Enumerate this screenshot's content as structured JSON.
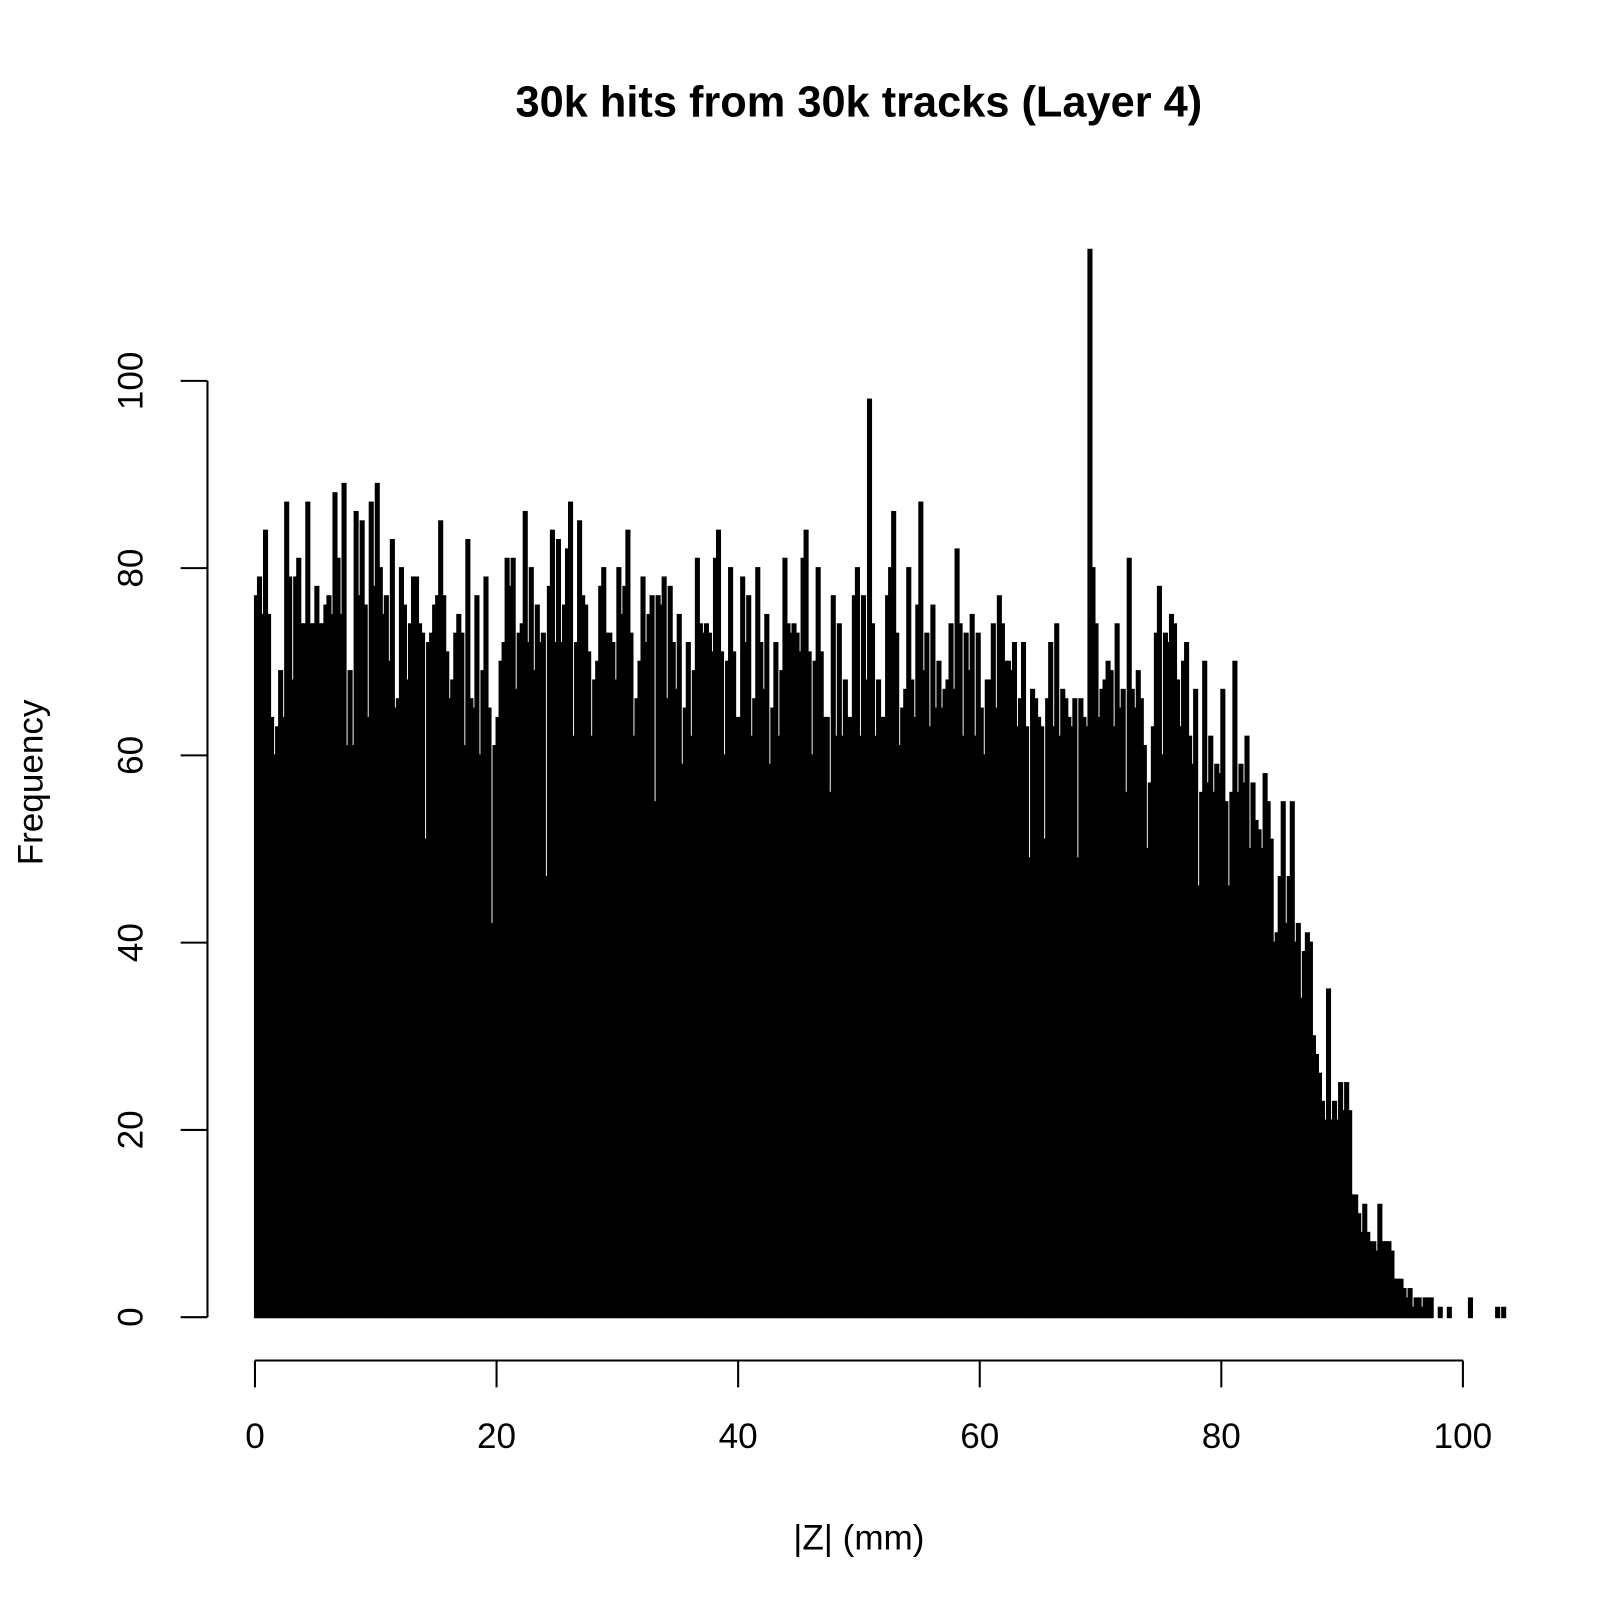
{
  "chart_data": {
    "type": "histogram",
    "title": "30k hits from 30k tracks (Layer 4)",
    "x_label": "|Z| (mm)",
    "y_label": "Frequency",
    "color": "#000000",
    "bins": [
      0,
      0.25,
      0.5,
      0.75,
      1,
      1.25,
      1.5,
      1.75,
      2,
      2.25,
      2.5,
      2.75,
      3,
      3.25,
      3.5,
      3.75,
      4,
      4.25,
      4.5,
      4.75,
      5,
      5.25,
      5.5,
      5.75,
      6,
      6.25,
      6.5,
      6.75,
      7,
      7.25,
      7.5,
      7.75,
      8,
      8.25,
      8.5,
      8.75,
      9,
      9.25,
      9.5,
      9.75,
      10,
      10.25,
      10.5,
      10.75,
      11,
      11.25,
      11.5,
      11.75,
      12,
      12.25,
      12.5,
      12.75,
      13,
      13.25,
      13.5,
      13.75,
      14,
      14.25,
      14.5,
      14.75,
      15,
      15.25,
      15.5,
      15.75,
      16,
      16.25,
      16.5,
      16.75,
      17,
      17.25,
      17.5,
      17.75,
      18,
      18.25,
      18.5,
      18.75,
      19,
      19.25,
      19.5,
      19.75,
      20,
      20.25,
      20.5,
      20.75,
      21,
      21.25,
      21.5,
      21.75,
      22,
      22.25,
      22.5,
      22.75,
      23,
      23.25,
      23.5,
      23.75,
      24,
      24.25,
      24.5,
      24.75,
      25,
      25.25,
      25.5,
      25.75,
      26,
      26.25,
      26.5,
      26.75,
      27,
      27.25,
      27.5,
      27.75,
      28,
      28.25,
      28.5,
      28.75,
      29,
      29.25,
      29.5,
      29.75,
      30,
      30.25,
      30.5,
      30.75,
      31,
      31.25,
      31.5,
      31.75,
      32,
      32.25,
      32.5,
      32.75,
      33,
      33.25,
      33.5,
      33.75,
      34,
      34.25,
      34.5,
      34.75,
      35,
      35.25,
      35.5,
      35.75,
      36,
      36.25,
      36.5,
      36.75,
      37,
      37.25,
      37.5,
      37.75,
      38,
      38.25,
      38.5,
      38.75,
      39,
      39.25,
      39.5,
      39.75,
      40,
      40.25,
      40.5,
      40.75,
      41,
      41.25,
      41.5,
      41.75,
      42,
      42.25,
      42.5,
      42.75,
      43,
      43.25,
      43.5,
      43.75,
      44,
      44.25,
      44.5,
      44.75,
      45,
      45.25,
      45.5,
      45.75,
      46,
      46.25,
      46.5,
      46.75,
      47,
      47.25,
      47.5,
      47.75,
      48,
      48.25,
      48.5,
      48.75,
      49,
      49.25,
      49.5,
      49.75,
      50,
      50.25,
      50.5,
      50.75,
      51,
      51.25,
      51.5,
      51.75,
      52,
      52.25,
      52.5,
      52.75,
      53,
      53.25,
      53.5,
      53.75,
      54,
      54.25,
      54.5,
      54.75,
      55,
      55.25,
      55.5,
      55.75,
      56,
      56.25,
      56.5,
      56.75,
      57,
      57.25,
      57.5,
      57.75,
      58,
      58.25,
      58.5,
      58.75,
      59,
      59.25,
      59.5,
      59.75,
      60,
      60.25,
      60.5,
      60.75,
      61,
      61.25,
      61.5,
      61.75,
      62,
      62.25,
      62.5,
      62.75,
      63,
      63.25,
      63.5,
      63.75,
      64,
      64.25,
      64.5,
      64.75,
      65,
      65.25,
      65.5,
      65.75,
      66,
      66.25,
      66.5,
      66.75,
      67,
      67.25,
      67.5,
      67.75,
      68,
      68.25,
      68.5,
      68.75,
      69,
      69.25,
      69.5,
      69.75,
      70,
      70.25,
      70.5,
      70.75,
      71,
      71.25,
      71.5,
      71.75,
      72,
      72.25,
      72.5,
      72.75,
      73,
      73.25,
      73.5,
      73.75,
      74,
      74.25,
      74.5,
      74.75,
      75,
      75.25,
      75.5,
      75.75,
      76,
      76.25,
      76.5,
      76.75,
      77,
      77.25,
      77.5,
      77.75,
      78,
      78.25,
      78.5,
      78.75,
      79,
      79.25,
      79.5,
      79.75,
      80,
      80.25,
      80.5,
      80.75,
      81,
      81.25,
      81.5,
      81.75,
      82,
      82.25,
      82.5,
      82.75,
      83,
      83.25,
      83.5,
      83.75,
      84,
      84.25,
      84.5,
      84.75,
      85,
      85.25,
      85.5,
      85.75,
      86,
      86.25,
      86.5,
      86.75,
      87,
      87.25,
      87.5,
      87.75,
      88,
      88.25,
      88.5,
      88.75,
      89,
      89.25,
      89.5,
      89.75,
      90,
      90.25,
      90.5,
      90.75,
      91,
      91.25,
      91.5,
      91.75,
      92,
      92.25,
      92.5,
      92.75,
      93,
      93.25,
      93.5,
      93.75,
      94,
      94.25,
      94.5,
      94.75,
      95,
      95.25,
      95.5,
      95.75,
      96,
      96.25,
      96.5,
      96.75,
      97,
      97.25,
      97.5,
      97.75,
      98,
      98.25,
      98.5,
      98.75,
      99,
      99.25,
      99.5,
      99.75,
      100,
      100.25,
      100.5,
      100.75,
      101,
      101.25,
      101.5,
      101.75,
      102,
      102.25,
      102.5,
      102.75,
      103,
      103.25,
      103.5,
      103.75,
      104
    ],
    "values": [
      77,
      79,
      75,
      84,
      75,
      64,
      60,
      63,
      69,
      64,
      87,
      79,
      68,
      79,
      81,
      74,
      74,
      87,
      74,
      74,
      78,
      74,
      74,
      76,
      77,
      75,
      88,
      81,
      75,
      89,
      61,
      69,
      61,
      86,
      77,
      85,
      76,
      64,
      87,
      78,
      89,
      80,
      75,
      77,
      70,
      83,
      65,
      66,
      80,
      76,
      68,
      74,
      79,
      79,
      74,
      73,
      51,
      72,
      73,
      76,
      77,
      85,
      77,
      71,
      66,
      68,
      73,
      75,
      73,
      61,
      83,
      66,
      65,
      77,
      60,
      69,
      79,
      65,
      42,
      61,
      64,
      70,
      72,
      81,
      78,
      81,
      67,
      73,
      74,
      86,
      72,
      80,
      69,
      76,
      72,
      73,
      47,
      78,
      84,
      72,
      83,
      72,
      76,
      82,
      87,
      62,
      72,
      85,
      77,
      76,
      71,
      62,
      68,
      70,
      78,
      80,
      73,
      73,
      72,
      68,
      80,
      75,
      78,
      84,
      73,
      62,
      66,
      70,
      79,
      72,
      75,
      77,
      55,
      77,
      76,
      79,
      66,
      78,
      72,
      67,
      75,
      59,
      65,
      72,
      62,
      69,
      81,
      74,
      73,
      74,
      73,
      71,
      81,
      84,
      71,
      60,
      70,
      80,
      71,
      64,
      64,
      79,
      72,
      77,
      62,
      66,
      80,
      72,
      67,
      75,
      59,
      65,
      72,
      62,
      69,
      81,
      74,
      73,
      74,
      73,
      71,
      81,
      84,
      71,
      60,
      70,
      80,
      71,
      64,
      64,
      56,
      77,
      62,
      74,
      62,
      68,
      64,
      64,
      77,
      80,
      62,
      77,
      68,
      98,
      74,
      62,
      68,
      64,
      64,
      77,
      80,
      86,
      73,
      61,
      65,
      67,
      80,
      68,
      64,
      76,
      87,
      69,
      73,
      63,
      76,
      65,
      70,
      65,
      67,
      68,
      74,
      67,
      82,
      74,
      62,
      73,
      69,
      75,
      62,
      73,
      65,
      60,
      68,
      68,
      74,
      65,
      77,
      74,
      70,
      70,
      69,
      72,
      63,
      66,
      72,
      63,
      49,
      67,
      66,
      64,
      63,
      51,
      66,
      72,
      63,
      74,
      62,
      67,
      66,
      64,
      63,
      66,
      49,
      66,
      64,
      63,
      114,
      80,
      74,
      64,
      67,
      68,
      70,
      69,
      63,
      74,
      65,
      67,
      56,
      81,
      67,
      65,
      69,
      66,
      61,
      50,
      57,
      63,
      73,
      78,
      60,
      73,
      72,
      75,
      74,
      68,
      63,
      70,
      72,
      62,
      59,
      67,
      46,
      56,
      70,
      57,
      62,
      56,
      59,
      58,
      67,
      55,
      46,
      56,
      70,
      56,
      59,
      57,
      62,
      50,
      57,
      53,
      52,
      50,
      58,
      55,
      51,
      40,
      41,
      47,
      55,
      42,
      47,
      55,
      40,
      42,
      34,
      39,
      41,
      40,
      30,
      28,
      26,
      23,
      21,
      35,
      21,
      23,
      21,
      25,
      22,
      25,
      22,
      13,
      13,
      11,
      9,
      12,
      9,
      8,
      8,
      7,
      12,
      8,
      8,
      8,
      7,
      4,
      4,
      4,
      3,
      2,
      3,
      1,
      2,
      2,
      1,
      2,
      2,
      2,
      0,
      0,
      1,
      0,
      0,
      1,
      0,
      0,
      0,
      0,
      0,
      0,
      2,
      0,
      0,
      0,
      0,
      0,
      0,
      0,
      0,
      1,
      0,
      1,
      0,
      0
    ],
    "xlim": [
      0,
      104
    ],
    "xticks": [
      0,
      20,
      40,
      60,
      80,
      100
    ],
    "ylim": [
      0,
      114
    ],
    "yticks": [
      0,
      20,
      40,
      60,
      80,
      100
    ]
  }
}
